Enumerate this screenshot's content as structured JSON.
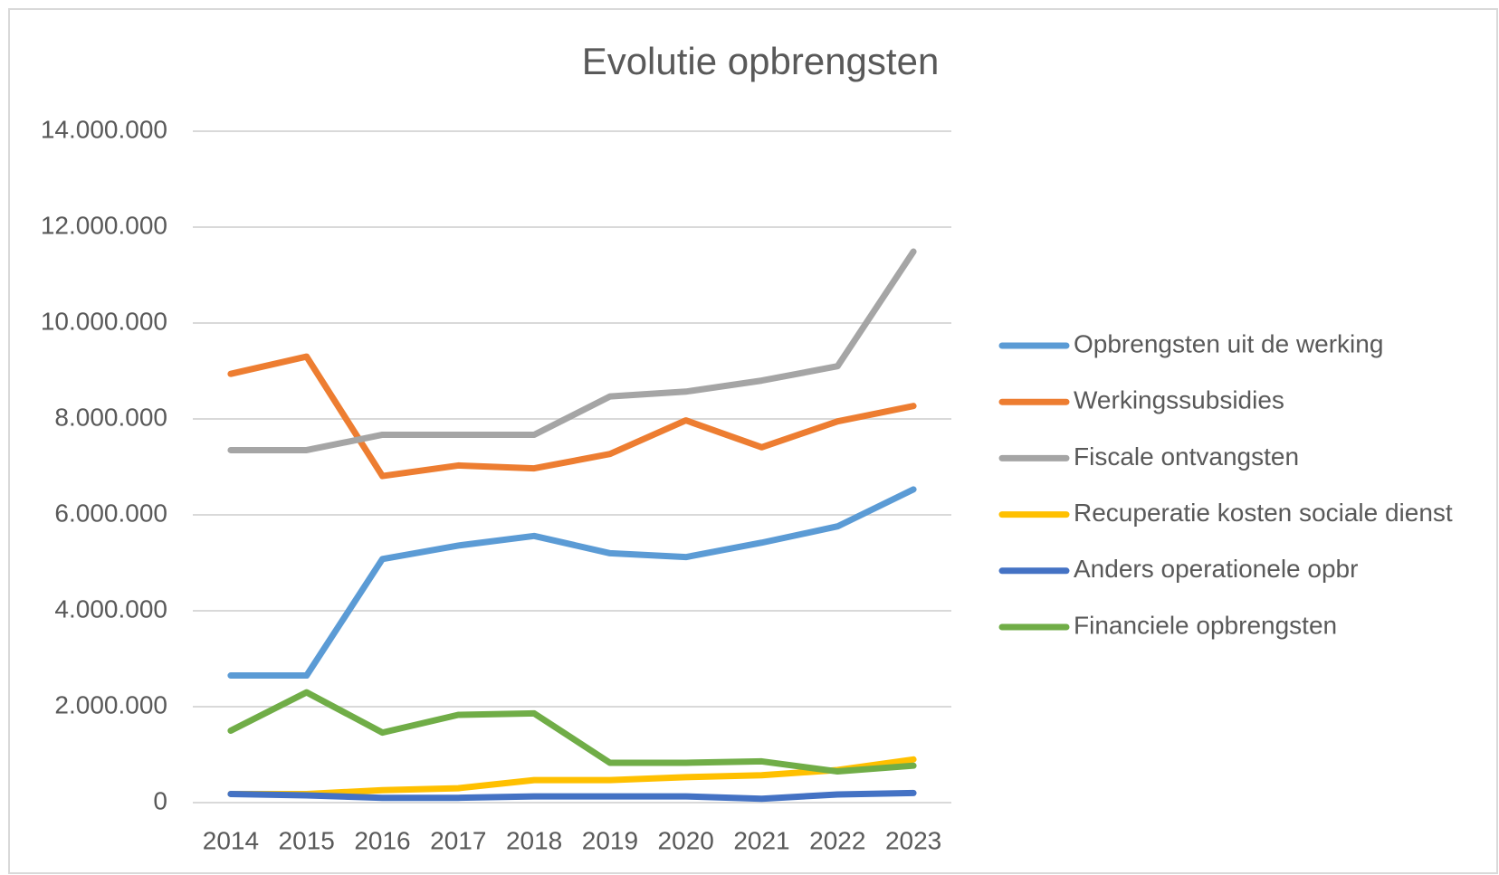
{
  "chart_data": {
    "type": "line",
    "title": "Evolutie opbrengsten",
    "categories": [
      "2014",
      "2015",
      "2016",
      "2017",
      "2018",
      "2019",
      "2020",
      "2021",
      "2022",
      "2023"
    ],
    "series": [
      {
        "name": "Opbrengsten uit de werking",
        "color": "#5b9bd5",
        "values": [
          2650000,
          2650000,
          5080000,
          5360000,
          5560000,
          5200000,
          5120000,
          5420000,
          5760000,
          6530000
        ]
      },
      {
        "name": "Werkingssubsidies",
        "color": "#ed7d31",
        "values": [
          8940000,
          9300000,
          6810000,
          7030000,
          6970000,
          7270000,
          7970000,
          7410000,
          7950000,
          8270000
        ]
      },
      {
        "name": "Fiscale ontvangsten",
        "color": "#a5a5a5",
        "values": [
          7350000,
          7350000,
          7670000,
          7670000,
          7670000,
          8470000,
          8570000,
          8800000,
          9100000,
          11490000
        ]
      },
      {
        "name": "Recuperatie kosten sociale dienst",
        "color": "#ffc000",
        "values": [
          180000,
          180000,
          260000,
          300000,
          470000,
          470000,
          530000,
          570000,
          680000,
          900000
        ]
      },
      {
        "name": "Anders operationele opbr",
        "color": "#4472c4",
        "values": [
          180000,
          150000,
          100000,
          100000,
          130000,
          130000,
          130000,
          80000,
          170000,
          200000
        ]
      },
      {
        "name": "Financiele opbrengsten",
        "color": "#70ad47",
        "values": [
          1500000,
          2300000,
          1460000,
          1830000,
          1860000,
          830000,
          830000,
          860000,
          650000,
          770000
        ]
      }
    ],
    "ylim": [
      0,
      14000000
    ],
    "yticks": [
      0,
      {
        "value": 2000000,
        "label": "2.000.000"
      },
      {
        "value": 4000000,
        "label": "4.000.000"
      },
      {
        "value": 6000000,
        "label": "6.000.000"
      },
      {
        "value": 8000000,
        "label": "8.000.000"
      },
      {
        "value": 10000000,
        "label": "10.000.000"
      },
      {
        "value": 12000000,
        "label": "12.000.000"
      },
      {
        "value": 14000000,
        "label": "14.000.000"
      }
    ],
    "grid": true,
    "legend": "right"
  }
}
